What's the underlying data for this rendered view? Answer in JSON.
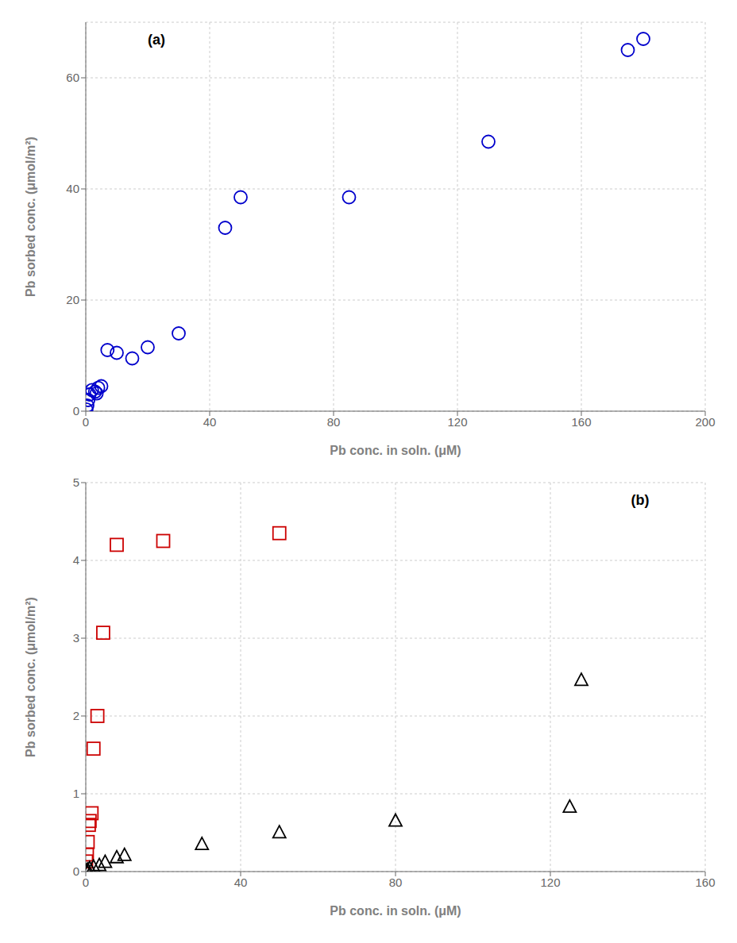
{
  "chart_data": [
    {
      "type": "scatter",
      "annotation": "(a)",
      "xlabel": "Pb conc. in soln. (μM)",
      "ylabel": "Pb sorbed conc. (μmol/m²)",
      "xlim": [
        0,
        200
      ],
      "ylim": [
        0,
        70
      ],
      "xticks": [
        0,
        40,
        80,
        120,
        160,
        200
      ],
      "yticks": [
        0,
        20,
        40,
        60
      ],
      "series": [
        {
          "color": "#0000cc",
          "marker": "circle",
          "x": [
            0.2,
            0.5,
            0.8,
            1.2,
            2.0,
            3.0,
            3.5,
            4.0,
            5.0,
            7.0,
            10.0,
            15.0,
            20.0,
            30.0,
            45.0,
            50.0,
            85.0,
            130.0,
            175.0,
            180.0
          ],
          "values": [
            0.3,
            1.0,
            2.0,
            3.0,
            3.8,
            3.5,
            3.2,
            4.2,
            4.5,
            11.0,
            10.5,
            9.5,
            11.5,
            14.0,
            33.0,
            38.5,
            38.5,
            48.5,
            65.0,
            67.0
          ]
        }
      ]
    },
    {
      "type": "scatter",
      "annotation": "(b)",
      "xlabel": "Pb conc. in soln. (μM)",
      "ylabel": "Pb sorbed conc. (μmol/m²)",
      "xlim": [
        0,
        160
      ],
      "ylim": [
        0,
        5
      ],
      "xticks": [
        0,
        40,
        80,
        120,
        160
      ],
      "yticks": [
        0,
        1,
        2,
        3,
        4,
        5
      ],
      "series": [
        {
          "color": "#cc0000",
          "marker": "square",
          "x": [
            0.1,
            0.3,
            0.5,
            0.8,
            1.0,
            1.5,
            2.0,
            3.0,
            4.5,
            8.0,
            20.0,
            50.0
          ],
          "values": [
            0.13,
            0.22,
            0.38,
            0.6,
            0.65,
            0.75,
            1.58,
            2.0,
            3.07,
            4.2,
            4.25,
            4.35
          ]
        },
        {
          "color": "#000000",
          "marker": "triangle",
          "x": [
            0.2,
            0.5,
            1.0,
            2.0,
            3.5,
            5.0,
            8.0,
            10.0,
            30.0,
            50.0,
            80.0,
            125.0,
            128.0
          ],
          "values": [
            0.01,
            0.02,
            0.04,
            0.06,
            0.08,
            0.12,
            0.18,
            0.21,
            0.35,
            0.5,
            0.65,
            0.83,
            2.46
          ]
        }
      ]
    }
  ]
}
